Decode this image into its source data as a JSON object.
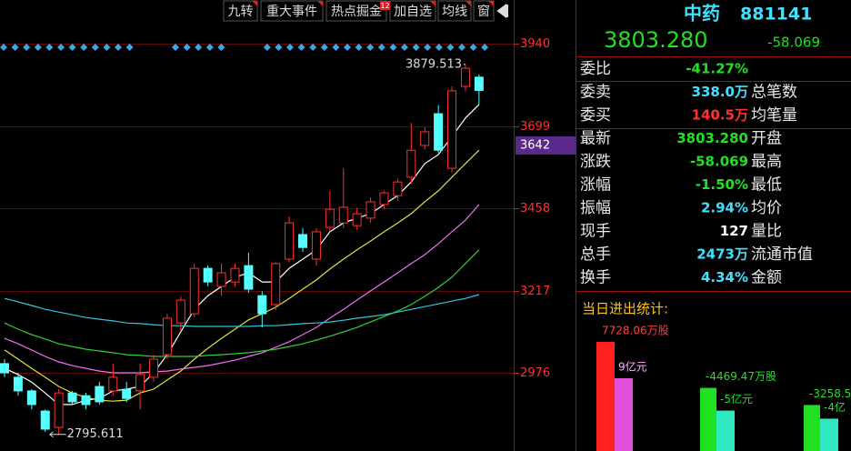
{
  "toolbar": [
    "九转",
    "重大事件",
    "热点掘金",
    "加自选",
    "均线",
    "窗"
  ],
  "toolbar_badge": "12",
  "quote": {
    "name": "中药",
    "code": "881141",
    "price": "3803.280",
    "change": "-58.069",
    "rows": [
      {
        "label": "委比",
        "value": "-41.27%",
        "color": "#20e020"
      },
      {
        "label": "委卖",
        "value": "338.0万",
        "label2": "总笔数",
        "color": "#40e0ff"
      },
      {
        "label": "委买",
        "value": "140.5万",
        "label2": "均笔量",
        "color": "#ff3030"
      },
      {
        "label": "最新",
        "value": "3803.280",
        "label2": "开盘",
        "color": "#20e020"
      },
      {
        "label": "涨跌",
        "value": "-58.069",
        "label2": "最高",
        "color": "#20e020"
      },
      {
        "label": "涨幅",
        "value": "-1.50%",
        "label2": "最低",
        "color": "#20e020"
      },
      {
        "label": "振幅",
        "value": "2.94%",
        "label2": "均价",
        "color": "#40e0ff"
      },
      {
        "label": "现手",
        "value": "127",
        "label2": "量比",
        "color": "#ffffff"
      },
      {
        "label": "总手",
        "value": "2473万",
        "label2": "流通市值",
        "color": "#40e0ff"
      },
      {
        "label": "换手",
        "value": "4.34%",
        "label2": "金额",
        "color": "#40e0ff"
      }
    ]
  },
  "chart_data": [
    {
      "type": "candlestick",
      "ylim": [
        2747,
        4068
      ],
      "yticks": [
        3940,
        3699,
        3458,
        3217,
        2976
      ],
      "grid": true,
      "up_color": "#ff3030",
      "down_color": "#54ffff",
      "price_tag": 3642,
      "max_label": 3879.513,
      "min_label": 2795.611,
      "open": [
        3003,
        2963,
        2923,
        2864,
        2816,
        2917,
        2909,
        2936,
        2923,
        2928,
        2923,
        2963,
        3029,
        3122,
        3149,
        3282,
        3229,
        3242,
        3290,
        3202,
        3176,
        3309,
        3381,
        3309,
        3402,
        3415,
        3407,
        3429,
        3469,
        3495,
        3549,
        3642,
        3735,
        3575,
        3815,
        3842
      ],
      "high": [
        3016,
        2976,
        2928,
        2869,
        2928,
        2923,
        2917,
        2950,
        3003,
        2950,
        3003,
        3029,
        3149,
        3200,
        3296,
        3290,
        3296,
        3296,
        3328,
        3215,
        3300,
        3434,
        3400,
        3400,
        3509,
        3575,
        3460,
        3490,
        3510,
        3545,
        3708,
        3695,
        3760,
        3815,
        3879.513,
        3850
      ],
      "low": [
        2963,
        2909,
        2869,
        2803,
        2795.611,
        2883,
        2869,
        2883,
        2909,
        2890,
        2869,
        2950,
        3016,
        3100,
        3140,
        3229,
        3202,
        3229,
        3210,
        3109,
        3160,
        3300,
        3330,
        3290,
        3390,
        3400,
        3395,
        3415,
        3455,
        3480,
        3530,
        3630,
        3620,
        3562,
        3800,
        3762
      ],
      "close": [
        2976,
        2923,
        2883,
        2811,
        2917,
        2891,
        2883,
        2891,
        2963,
        2901,
        2971,
        3016,
        3136,
        3189,
        3282,
        3242,
        3269,
        3282,
        3221,
        3149,
        3296,
        3415,
        3343,
        3389,
        3455,
        3461,
        3442,
        3477,
        3503,
        3535,
        3628,
        3682,
        3628,
        3802,
        3868,
        3803.28
      ],
      "series": [
        {
          "color": "#ffffff",
          "values": [
            2989,
            2971,
            2949,
            2917,
            2883,
            2883,
            2896,
            2901,
            2923,
            2928,
            2936,
            2976,
            3029,
            3096,
            3162,
            3202,
            3229,
            3256,
            3269,
            3242,
            3242,
            3282,
            3309,
            3336,
            3389,
            3415,
            3429,
            3442,
            3469,
            3495,
            3535,
            3589,
            3615,
            3668,
            3722,
            3762
          ]
        },
        {
          "color": "#e8e040",
          "values": [
            3043,
            3016,
            2989,
            2963,
            2936,
            2917,
            2904,
            2896,
            2893,
            2896,
            2917,
            2928,
            2955,
            2981,
            3016,
            3048,
            3077,
            3104,
            3131,
            3149,
            3168,
            3194,
            3221,
            3248,
            3280,
            3309,
            3336,
            3362,
            3389,
            3415,
            3442,
            3477,
            3509,
            3549,
            3589,
            3628
          ]
        },
        {
          "color": "#f070f0",
          "values": [
            3077,
            3061,
            3043,
            3024,
            3008,
            2997,
            2989,
            2981,
            2976,
            2976,
            2976,
            2979,
            2981,
            2987,
            2992,
            2997,
            3005,
            3013,
            3024,
            3035,
            3051,
            3067,
            3088,
            3109,
            3136,
            3162,
            3189,
            3216,
            3242,
            3269,
            3296,
            3322,
            3354,
            3389,
            3423,
            3469
          ]
        },
        {
          "color": "#30d030",
          "values": [
            3122,
            3104,
            3088,
            3075,
            3061,
            3053,
            3045,
            3040,
            3035,
            3029,
            3027,
            3024,
            3024,
            3024,
            3024,
            3027,
            3029,
            3032,
            3035,
            3040,
            3045,
            3053,
            3061,
            3072,
            3083,
            3096,
            3109,
            3125,
            3141,
            3157,
            3176,
            3200,
            3226,
            3256,
            3296,
            3336
          ]
        },
        {
          "color": "#30c8e0",
          "values": [
            3194,
            3184,
            3173,
            3162,
            3154,
            3146,
            3138,
            3133,
            3128,
            3122,
            3120,
            3117,
            3114,
            3114,
            3112,
            3112,
            3112,
            3112,
            3112,
            3114,
            3114,
            3117,
            3120,
            3122,
            3125,
            3130,
            3136,
            3141,
            3146,
            3154,
            3162,
            3170,
            3178,
            3186,
            3194,
            3205
          ]
        }
      ]
    },
    {
      "type": "bar",
      "title": "当日进出统计:",
      "values": [
        7728.06,
        9,
        -4469.47,
        -5,
        -3258.5,
        -4
      ],
      "value_labels": [
        "7728.06万股",
        "9亿元",
        "-4469.47万股",
        "-5亿元",
        "-3258.5",
        "-4亿"
      ],
      "colors": [
        "#ff2020",
        "#e050d8",
        "#20e020",
        "#30e8c0",
        "#20e020",
        "#30e8c0"
      ]
    }
  ]
}
